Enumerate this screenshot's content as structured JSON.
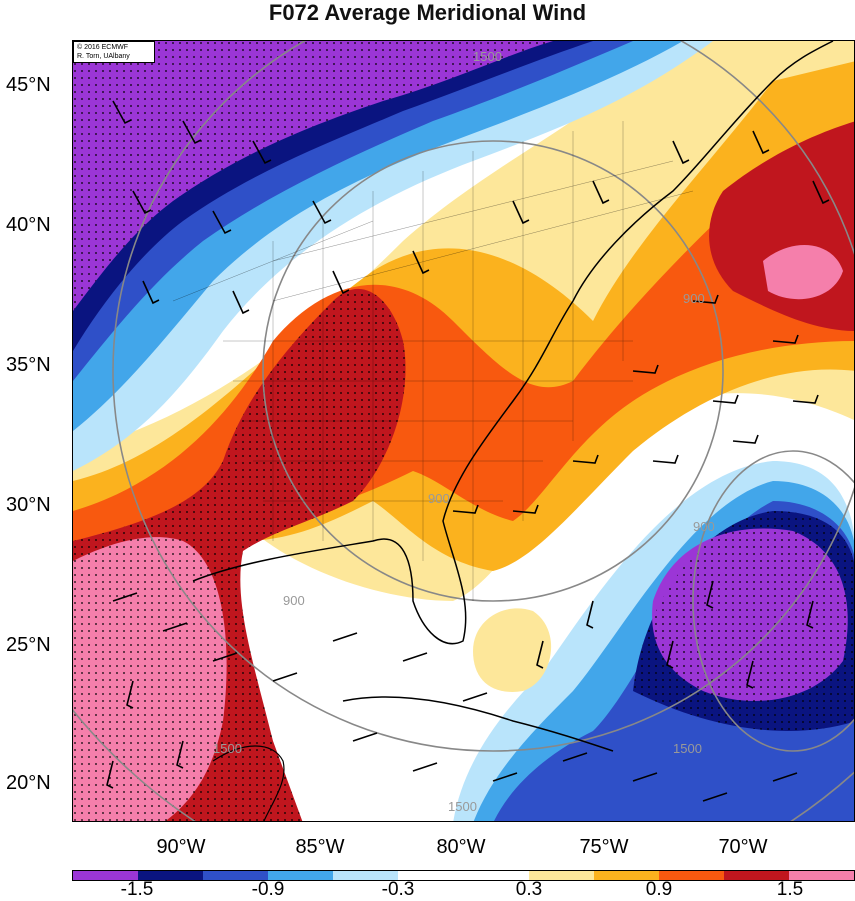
{
  "title": "F072 Average Meridional Wind",
  "credit": [
    "© 2016 ECMWF",
    "R. Torn, UAlbany"
  ],
  "lat_labels": [
    "45°N",
    "40°N",
    "35°N",
    "30°N",
    "25°N",
    "20°N"
  ],
  "lon_labels": [
    "90°W",
    "85°W",
    "80°W",
    "75°W",
    "70°W"
  ],
  "contour_labels": [
    "1500",
    "900",
    "900",
    "900",
    "900",
    "1500",
    "1500",
    "1500"
  ],
  "colorbar": {
    "colors": [
      "#9b36d6",
      "#0a1480",
      "#2f50c8",
      "#42a6ea",
      "#b9e4fb",
      "#ffffff",
      "#ffffff",
      "#fde79a",
      "#fbb21e",
      "#f8590f",
      "#c0161e",
      "#f57fab"
    ],
    "labels": [
      "-1.5",
      "-0.9",
      "-0.3",
      "0.3",
      "0.9",
      "1.5"
    ]
  },
  "map_colors": {
    "ocean_white": "#ffffff",
    "purple": "#9b36d6",
    "navy": "#0a1480",
    "blue": "#2f50c8",
    "light_blue": "#42a6ea",
    "pale_blue": "#b9e4fb",
    "pale_yellow": "#fde79a",
    "orange": "#fbb21e",
    "red_orange": "#f8590f",
    "dark_red": "#c0161e",
    "pink": "#f57fab"
  }
}
